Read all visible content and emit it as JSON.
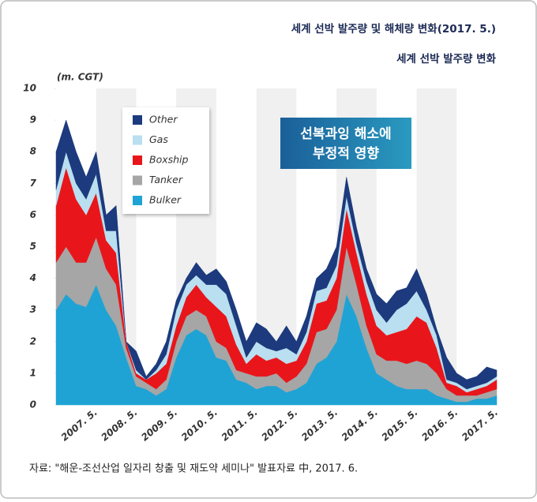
{
  "chart_data": {
    "type": "area",
    "stacked": true,
    "title": "세계 선박 발주량 및 해체량 변화(2017. 5.)",
    "subtitle": "세계 선박 발주량 변화",
    "y_label": "(m. CGT)",
    "annotation": [
      "선복과잉 해소에",
      "부정적 영향"
    ],
    "source": "자료: \"해운-조선산업 일자리 창출 및 재도약 세미나\" 발표자료 中, 2017. 6.",
    "categories": [
      null,
      null,
      null,
      null,
      "2007. 5.",
      null,
      null,
      null,
      "2008. 5.",
      null,
      null,
      null,
      "2009. 5.",
      null,
      null,
      null,
      "2010. 5.",
      null,
      null,
      null,
      "2011. 5.",
      null,
      null,
      null,
      "2012. 5.",
      null,
      null,
      null,
      "2013. 5.",
      null,
      null,
      null,
      "2014. 5.",
      null,
      null,
      null,
      "2015. 5.",
      null,
      null,
      null,
      "2016. 5.",
      null,
      null,
      null,
      "2017. 5."
    ],
    "series": [
      {
        "name": "Bulker",
        "color": "#1fa3d4",
        "values": [
          3.0,
          3.5,
          3.2,
          3.1,
          3.8,
          3.0,
          2.5,
          1.5,
          0.6,
          0.5,
          0.3,
          0.5,
          1.5,
          2.2,
          2.4,
          2.2,
          1.5,
          1.4,
          0.8,
          0.7,
          0.5,
          0.6,
          0.6,
          0.4,
          0.5,
          0.7,
          1.3,
          1.5,
          2.0,
          3.5,
          2.8,
          1.8,
          1.0,
          0.8,
          0.6,
          0.5,
          0.5,
          0.5,
          0.3,
          0.2,
          0.1,
          0.1,
          0.2,
          0.2,
          0.3
        ]
      },
      {
        "name": "Tanker",
        "color": "#a6a6a6",
        "values": [
          1.5,
          1.5,
          1.3,
          1.4,
          1.5,
          1.3,
          1.3,
          0.3,
          0.3,
          0.2,
          0.2,
          0.3,
          0.5,
          0.6,
          0.6,
          0.6,
          0.5,
          0.4,
          0.3,
          0.3,
          0.4,
          0.3,
          0.4,
          0.3,
          0.4,
          0.6,
          1.0,
          0.9,
          1.0,
          1.5,
          1.0,
          0.7,
          0.6,
          0.6,
          0.8,
          0.8,
          0.9,
          0.8,
          0.7,
          0.3,
          0.2,
          0.2,
          0.1,
          0.2,
          0.2
        ]
      },
      {
        "name": "Boxship",
        "color": "#e8161b",
        "values": [
          1.8,
          2.5,
          2.0,
          1.5,
          1.4,
          0.9,
          1.0,
          0.2,
          0.1,
          0.1,
          0.5,
          0.5,
          0.5,
          0.6,
          0.8,
          0.6,
          1.1,
          1.0,
          0.8,
          0.3,
          0.7,
          0.5,
          0.5,
          0.6,
          0.5,
          0.7,
          0.9,
          0.9,
          1.0,
          1.2,
          1.0,
          1.0,
          0.9,
          0.8,
          0.9,
          1.1,
          1.4,
          1.3,
          0.8,
          0.2,
          0.3,
          0.1,
          0.2,
          0.2,
          0.3
        ]
      },
      {
        "name": "Gas",
        "color": "#b9dff0",
        "values": [
          0.5,
          0.5,
          0.5,
          0.5,
          0.6,
          0.3,
          0.7,
          0.0,
          0.1,
          0.0,
          0.1,
          0.3,
          0.5,
          0.4,
          0.3,
          0.4,
          0.7,
          0.7,
          0.6,
          0.2,
          0.4,
          0.4,
          0.2,
          0.5,
          0.2,
          0.3,
          0.4,
          0.4,
          0.4,
          0.4,
          0.3,
          0.4,
          0.5,
          0.4,
          0.7,
          0.8,
          0.8,
          0.4,
          0.4,
          0.1,
          0.1,
          0.1,
          0.1,
          0.1,
          0.1
        ]
      },
      {
        "name": "Other",
        "color": "#1c3a7d",
        "values": [
          1.2,
          1.0,
          1.0,
          0.7,
          0.7,
          0.5,
          0.8,
          0.0,
          0.6,
          0.1,
          0.2,
          0.4,
          0.3,
          0.2,
          0.4,
          0.3,
          0.5,
          0.4,
          0.5,
          0.5,
          0.6,
          0.6,
          0.3,
          0.7,
          0.4,
          0.5,
          0.4,
          0.6,
          0.6,
          0.6,
          0.5,
          0.4,
          0.5,
          0.6,
          0.6,
          0.5,
          0.7,
          0.5,
          0.2,
          0.7,
          0.3,
          0.3,
          0.3,
          0.5,
          0.2
        ]
      }
    ],
    "ylim": [
      0,
      10
    ],
    "yticks": [
      0,
      1,
      2,
      3,
      4,
      5,
      6,
      7,
      8,
      9,
      10
    ],
    "legend": "upper left"
  }
}
